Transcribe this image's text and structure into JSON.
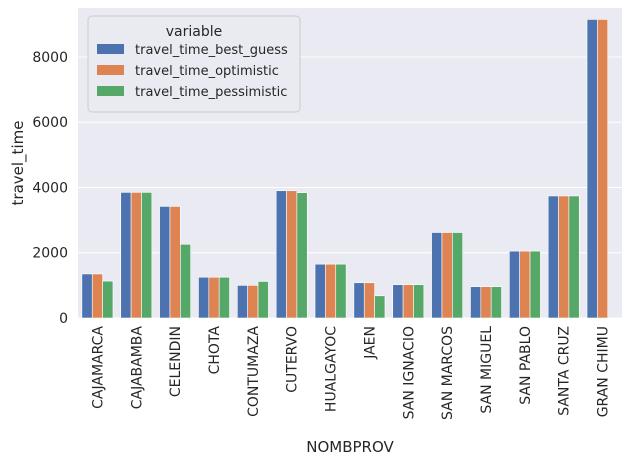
{
  "chart_data": {
    "type": "bar",
    "xlabel": "NOMBPROV",
    "ylabel": "travel_time",
    "ylim": [
      0,
      9500
    ],
    "yticks": [
      0,
      2000,
      4000,
      6000,
      8000
    ],
    "grid": true,
    "legend": {
      "title": "variable",
      "placement": "top-left"
    },
    "categories": [
      "CAJAMARCA",
      "CAJABAMBA",
      "CELENDIN",
      "CHOTA",
      "CONTUMAZA",
      "CUTERVO",
      "HUALGAYOC",
      "JAEN",
      "SAN IGNACIO",
      "SAN MARCOS",
      "SAN MIGUEL",
      "SAN PABLO",
      "SANTA CRUZ",
      "GRAN CHIMU"
    ],
    "series": [
      {
        "name": "travel_time_best_guess",
        "color": "#4c72b0",
        "values": [
          1350,
          3850,
          3420,
          1250,
          1000,
          3900,
          1650,
          1080,
          1020,
          2620,
          960,
          2050,
          3740,
          9150
        ]
      },
      {
        "name": "travel_time_optimistic",
        "color": "#dd8452",
        "values": [
          1350,
          3850,
          3420,
          1250,
          1000,
          3900,
          1650,
          1080,
          1020,
          2620,
          960,
          2050,
          3740,
          9150
        ]
      },
      {
        "name": "travel_time_pessimistic",
        "color": "#55a868",
        "values": [
          1130,
          3850,
          2260,
          1250,
          1120,
          3840,
          1650,
          680,
          1020,
          2620,
          960,
          2050,
          3740,
          null
        ]
      }
    ]
  }
}
